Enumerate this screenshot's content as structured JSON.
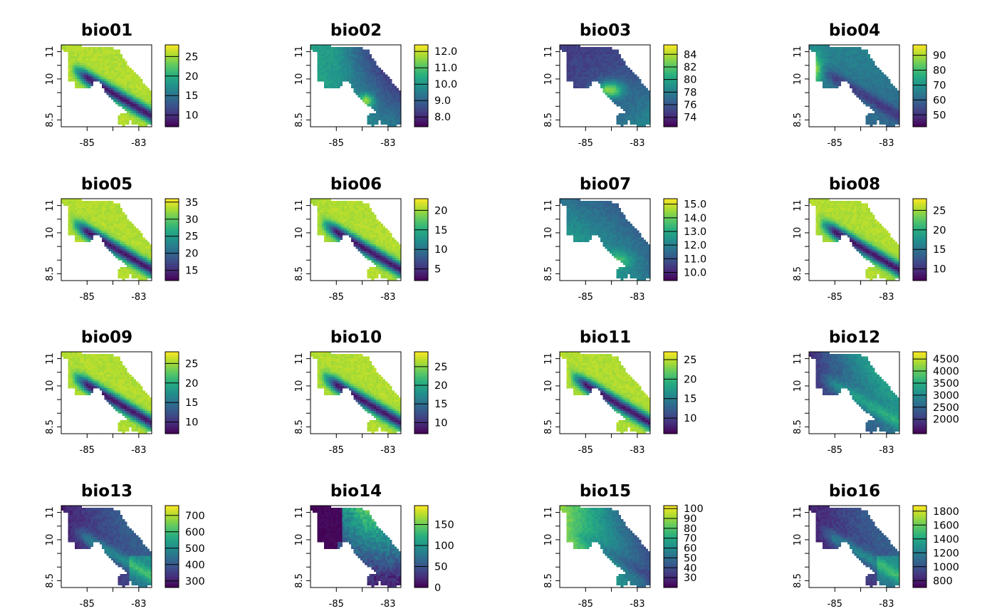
{
  "colors": {
    "viridis": [
      "#440154",
      "#472d7b",
      "#3b528b",
      "#2c728e",
      "#21918c",
      "#28ae80",
      "#5ec962",
      "#addc30",
      "#fde725"
    ],
    "frame": "#000000",
    "background": "#ffffff"
  },
  "chart_data": {
    "type": "heatmap",
    "x_ticks": [
      "-85",
      "-83"
    ],
    "y_ticks": [
      "8.5",
      "10",
      "11"
    ],
    "xlim": [
      -86,
      -82.5
    ],
    "ylim": [
      8.25,
      11.25
    ],
    "panels": [
      {
        "title": "bio01",
        "legend_ticks": [
          "25",
          "20",
          "15",
          "10"
        ],
        "legend_range": [
          7,
          28
        ],
        "pattern": "topo"
      },
      {
        "title": "bio02",
        "legend_ticks": [
          "12.0",
          "11.0",
          "10.0",
          "9.0",
          "8.0"
        ],
        "legend_range": [
          7.4,
          12.4
        ],
        "pattern": "bio02"
      },
      {
        "title": "bio03",
        "legend_ticks": [
          "84",
          "82",
          "80",
          "78",
          "76",
          "74"
        ],
        "legend_range": [
          72.5,
          85.5
        ],
        "pattern": "bio03"
      },
      {
        "title": "bio04",
        "legend_ticks": [
          "90",
          "80",
          "70",
          "60",
          "50"
        ],
        "legend_range": [
          42,
          97
        ],
        "pattern": "bio04"
      },
      {
        "title": "bio05",
        "legend_ticks": [
          "35",
          "30",
          "25",
          "20",
          "15"
        ],
        "legend_range": [
          12,
          36
        ],
        "pattern": "topo"
      },
      {
        "title": "bio06",
        "legend_ticks": [
          "20",
          "15",
          "10",
          "5"
        ],
        "legend_range": [
          2,
          23
        ],
        "pattern": "topo"
      },
      {
        "title": "bio07",
        "legend_ticks": [
          "15.0",
          "14.0",
          "13.0",
          "12.0",
          "11.0",
          "10.0"
        ],
        "legend_range": [
          9.4,
          15.4
        ],
        "pattern": "bio07"
      },
      {
        "title": "bio08",
        "legend_ticks": [
          "25",
          "20",
          "15",
          "10"
        ],
        "legend_range": [
          7,
          28
        ],
        "pattern": "topo"
      },
      {
        "title": "bio09",
        "legend_ticks": [
          "25",
          "20",
          "15",
          "10"
        ],
        "legend_range": [
          7,
          28
        ],
        "pattern": "topo"
      },
      {
        "title": "bio10",
        "legend_ticks": [
          "25",
          "20",
          "15",
          "10"
        ],
        "legend_range": [
          7,
          29
        ],
        "pattern": "topo"
      },
      {
        "title": "bio11",
        "legend_ticks": [
          "25",
          "20",
          "15",
          "10"
        ],
        "legend_range": [
          6,
          27
        ],
        "pattern": "topo"
      },
      {
        "title": "bio12",
        "legend_ticks": [
          "4500",
          "4000",
          "3500",
          "3000",
          "2500",
          "2000"
        ],
        "legend_range": [
          1400,
          4800
        ],
        "pattern": "precip"
      },
      {
        "title": "bio13",
        "legend_ticks": [
          "700",
          "600",
          "500",
          "400",
          "300"
        ],
        "legend_range": [
          260,
          760
        ],
        "pattern": "precip_low"
      },
      {
        "title": "bio14",
        "legend_ticks": [
          "150",
          "100",
          "50",
          "0"
        ],
        "legend_range": [
          0,
          195
        ],
        "pattern": "bio14"
      },
      {
        "title": "bio15",
        "legend_ticks": [
          "100",
          "90",
          "80",
          "70",
          "60",
          "50",
          "40",
          "30"
        ],
        "legend_range": [
          20,
          103
        ],
        "pattern": "bio15"
      },
      {
        "title": "bio16",
        "legend_ticks": [
          "1800",
          "1600",
          "1400",
          "1200",
          "1000",
          "800"
        ],
        "legend_range": [
          700,
          1880
        ],
        "pattern": "precip_low"
      }
    ]
  }
}
